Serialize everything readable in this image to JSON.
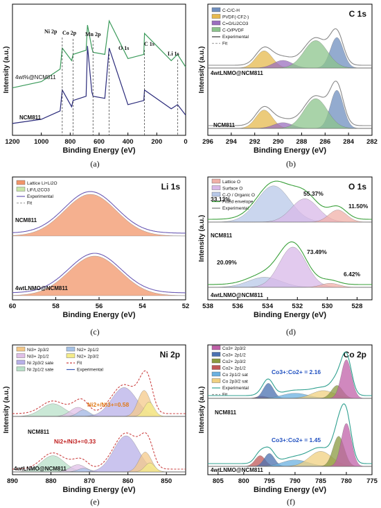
{
  "chart_data": [
    {
      "id": "a",
      "type": "line",
      "caption": "(a)",
      "title": "",
      "xlabel": "Binding Energy (eV)",
      "ylabel": "Intensity (a.u.)",
      "xlim": [
        1200,
        0
      ],
      "x_ticks": [
        "1200",
        "1000",
        "800",
        "600",
        "400",
        "200",
        "0"
      ],
      "series": [
        {
          "name": "4wt%@NCM811",
          "color": "#3a9a5a",
          "x": [
            1200,
            1000,
            870,
            855,
            790,
            780,
            690,
            680,
            650,
            642,
            560,
            530,
            400,
            290,
            285,
            100,
            56,
            0
          ],
          "y": [
            2.0,
            2.3,
            2.9,
            3.9,
            3.3,
            3.6,
            3.8,
            5.0,
            3.9,
            3.7,
            3.6,
            5.2,
            3.4,
            3.6,
            4.6,
            3.3,
            3.6,
            3.0
          ]
        },
        {
          "name": "NCM811",
          "color": "#2a2a7a",
          "x": [
            1200,
            1000,
            870,
            855,
            790,
            780,
            690,
            680,
            650,
            642,
            560,
            530,
            400,
            290,
            285,
            100,
            56,
            0
          ],
          "y": [
            0.3,
            0.5,
            0.9,
            1.9,
            1.1,
            1.4,
            1.6,
            4.0,
            1.8,
            1.6,
            1.5,
            3.9,
            1.2,
            1.4,
            1.9,
            1.0,
            1.2,
            0.7
          ]
        }
      ],
      "annotations": [
        "Ni 2p",
        "Co 2p",
        "Mn 2p",
        "O 1s",
        "C 1s",
        "Li 1s"
      ]
    },
    {
      "id": "b",
      "type": "area",
      "caption": "(b)",
      "title": "C 1s",
      "xlabel": "Binding Energy (eV)",
      "ylabel": "Intensity (a.u.)",
      "xlim": [
        296,
        282
      ],
      "x_ticks": [
        "296",
        "294",
        "292",
        "290",
        "288",
        "286",
        "284",
        "282"
      ],
      "legend": [
        "C-C/C-H",
        "PVDF(-CF2-)",
        "C=O/Li2CO3",
        "C-O/PVDF",
        "Experimental",
        "Fit"
      ],
      "legend_colors": [
        "#6f8fbf",
        "#e6b94e",
        "#9b6fbf",
        "#8cc48c",
        "#333333",
        "#aaaaaa"
      ],
      "sample_labels": [
        "4wtLNMO@NCM811",
        "NCM811"
      ],
      "peaks": [
        {
          "sample": "4wtLNMO@NCM811",
          "components": [
            {
              "name": "C-C/C-H",
              "center": 285.0,
              "height": 0.8
            },
            {
              "name": "PVDF(-CF2-)",
              "center": 291.2,
              "height": 0.45
            },
            {
              "name": "C=O/Li2CO3",
              "center": 289.6,
              "height": 0.2
            },
            {
              "name": "C-O/PVDF",
              "center": 286.8,
              "height": 0.72
            }
          ]
        },
        {
          "sample": "NCM811",
          "components": [
            {
              "name": "C-C/C-H",
              "center": 285.0,
              "height": 1.0
            },
            {
              "name": "PVDF(-CF2-)",
              "center": 291.2,
              "height": 0.48
            },
            {
              "name": "C=O/Li2CO3",
              "center": 289.6,
              "height": 0.15
            },
            {
              "name": "C-O/PVDF",
              "center": 286.8,
              "height": 0.78
            }
          ]
        }
      ]
    },
    {
      "id": "c",
      "type": "area",
      "caption": "(c)",
      "title": "Li 1s",
      "xlabel": "Binding Energy (eV)",
      "ylabel": "",
      "xlim": [
        60,
        52
      ],
      "x_ticks": [
        "60",
        "58",
        "56",
        "54",
        "52"
      ],
      "legend": [
        "Lattice Li+Li2O",
        "LiF/Li2CO3",
        "Experimental",
        "Fit"
      ],
      "legend_colors": [
        "#f2956a",
        "#c8e6a8",
        "#6b5bb5",
        "#aaaaaa"
      ],
      "sample_labels": [
        "NCM811",
        "4wtLNMO@NCM811"
      ],
      "peaks": [
        {
          "sample": "NCM811",
          "components": [
            {
              "name": "Lattice Li+Li2O",
              "center": 56.4,
              "height": 1.0
            }
          ]
        },
        {
          "sample": "4wtLNMO@NCM811",
          "components": [
            {
              "name": "Lattice Li+Li2O",
              "center": 56.2,
              "height": 0.95
            }
          ]
        }
      ]
    },
    {
      "id": "d",
      "type": "area",
      "caption": "(d)",
      "title": "O 1s",
      "xlabel": "Binding Energy (eV)",
      "ylabel": "Intensity (a.u.)",
      "xlim": [
        538,
        527
      ],
      "x_ticks": [
        "538",
        "536",
        "534",
        "532",
        "530",
        "528"
      ],
      "legend": [
        "Lattice O",
        "Surface O",
        "C-O / Organic O",
        "Fitted envelope",
        "Experimental"
      ],
      "legend_colors": [
        "#f0b0a8",
        "#d8b8e8",
        "#b8c8e8",
        "#3aa03a",
        "#777777"
      ],
      "sample_labels": [
        "NCM811",
        "4wtLNMO@NCM811"
      ],
      "percent_labels": [
        {
          "sample": "NCM811",
          "labels": [
            "33.13%",
            "55.37%",
            "11.50%"
          ]
        },
        {
          "sample": "4wtLNMO@NCM811",
          "labels": [
            "20.09%",
            "73.49%",
            "6.42%"
          ]
        }
      ],
      "peaks": [
        {
          "sample": "NCM811",
          "components": [
            {
              "name": "C-O / Organic O",
              "center": 533.6,
              "height": 0.9
            },
            {
              "name": "Surface O",
              "center": 531.5,
              "height": 0.58
            },
            {
              "name": "Lattice O",
              "center": 529.3,
              "height": 0.3
            }
          ]
        },
        {
          "sample": "4wtLNMO@NCM811",
          "components": [
            {
              "name": "C-O / Organic O",
              "center": 534.2,
              "height": 0.25
            },
            {
              "name": "Surface O",
              "center": 532.3,
              "height": 1.0
            },
            {
              "name": "Lattice O",
              "center": 529.8,
              "height": 0.1
            }
          ]
        }
      ]
    },
    {
      "id": "e",
      "type": "area",
      "caption": "(e)",
      "title": "Ni 2p",
      "xlabel": "Binding Energy (eV)",
      "ylabel": "Intensity (a.u.)",
      "xlim": [
        890,
        845
      ],
      "x_ticks": [
        "890",
        "880",
        "870",
        "860",
        "850"
      ],
      "legend": [
        "Ni3+ 2p3/2",
        "Ni2+ 2p1/2",
        "Ni3+ 2p1/2",
        "Ni2+ 2p3/2",
        "Ni 2p3/2 sate",
        "Fit",
        "Ni 2p1/2 sate",
        "Experimental"
      ],
      "legend_colors": [
        "#f4c98a",
        "#a8c4e8",
        "#e0c0e8",
        "#f4ec8a",
        "#b8b0e8",
        "#cc4444",
        "#b8e0c8",
        "#3a5ab8"
      ],
      "sample_labels": [
        "NCM811",
        "4wtLNMO@NCM811"
      ],
      "ratio_labels": [
        "Ni2+/Ni3+=0.58",
        "Ni2+/Ni3+=0.33"
      ],
      "peaks": [
        {
          "sample": "NCM811",
          "components": [
            {
              "name": "Ni 2p1/2 sate",
              "center": 879.5,
              "height": 0.35
            },
            {
              "name": "Ni3+ 2p1/2",
              "center": 873.0,
              "height": 0.25
            },
            {
              "name": "Ni2+ 2p1/2",
              "center": 871.5,
              "height": 0.18
            },
            {
              "name": "Ni 2p3/2 sate",
              "center": 861.0,
              "height": 0.8
            },
            {
              "name": "Ni3+ 2p3/2",
              "center": 855.8,
              "height": 0.72
            },
            {
              "name": "Ni2+ 2p3/2",
              "center": 854.5,
              "height": 0.4
            }
          ]
        },
        {
          "sample": "4wtLNMO@NCM811",
          "components": [
            {
              "name": "Ni 2p1/2 sate",
              "center": 879.5,
              "height": 0.45
            },
            {
              "name": "Ni3+ 2p1/2",
              "center": 873.0,
              "height": 0.2
            },
            {
              "name": "Ni2+ 2p1/2",
              "center": 871.5,
              "height": 0.1
            },
            {
              "name": "Ni 2p3/2 sate",
              "center": 860.5,
              "height": 1.0
            },
            {
              "name": "Ni3+ 2p3/2",
              "center": 855.5,
              "height": 0.55
            },
            {
              "name": "Ni2+ 2p3/2",
              "center": 854.3,
              "height": 0.25
            }
          ]
        }
      ]
    },
    {
      "id": "f",
      "type": "area",
      "caption": "(f)",
      "title": "Co 2p",
      "xlabel": "Binding Energy (eV)",
      "ylabel": "Intensity (a.u.)",
      "xlim": [
        807,
        775
      ],
      "x_ticks": [
        "805",
        "800",
        "795",
        "790",
        "785",
        "780",
        "775"
      ],
      "legend": [
        "Co3+ 2p3/2",
        "Co3+ 2p1/2",
        "Co2+ 2p3/2",
        "Co2+ 2p1/2",
        "Co 2p1/2 sat",
        "Co 2p3/2 sat",
        "Experimental",
        "Fit"
      ],
      "legend_colors": [
        "#c060a8",
        "#4a70b0",
        "#8a9a40",
        "#c05858",
        "#6ab0e0",
        "#f0d080",
        "#30a090",
        "#999999"
      ],
      "sample_labels": [
        "NCM811",
        "4wtLNMO@NCM811"
      ],
      "ratio_labels": [
        "Co3+:Co2+ = 2.16",
        "Co3+:Co2+ = 1.45"
      ],
      "peaks": [
        {
          "sample": "NCM811",
          "components": [
            {
              "name": "Co2+ 2p1/2",
              "center": 796.5,
              "height": 0.05
            },
            {
              "name": "Co3+ 2p1/2",
              "center": 795.2,
              "height": 0.35
            },
            {
              "name": "Co 2p1/2 sat",
              "center": 790.0,
              "height": 0.12
            },
            {
              "name": "Co 2p3/2 sat",
              "center": 784.5,
              "height": 0.18
            },
            {
              "name": "Co2+ 2p3/2",
              "center": 781.8,
              "height": 0.3
            },
            {
              "name": "Co3+ 2p3/2",
              "center": 780.0,
              "height": 0.9
            }
          ]
        },
        {
          "sample": "4wtLNMO@NCM811",
          "components": [
            {
              "name": "Co2+ 2p1/2",
              "center": 796.8,
              "height": 0.25
            },
            {
              "name": "Co3+ 2p1/2",
              "center": 795.0,
              "height": 0.3
            },
            {
              "name": "Co 2p1/2 sat",
              "center": 790.0,
              "height": 0.15
            },
            {
              "name": "Co 2p3/2 sat",
              "center": 785.0,
              "height": 0.35
            },
            {
              "name": "Co2+ 2p3/2",
              "center": 781.5,
              "height": 0.7
            },
            {
              "name": "Co3+ 2p3/2",
              "center": 780.0,
              "height": 1.0
            }
          ]
        }
      ]
    }
  ]
}
